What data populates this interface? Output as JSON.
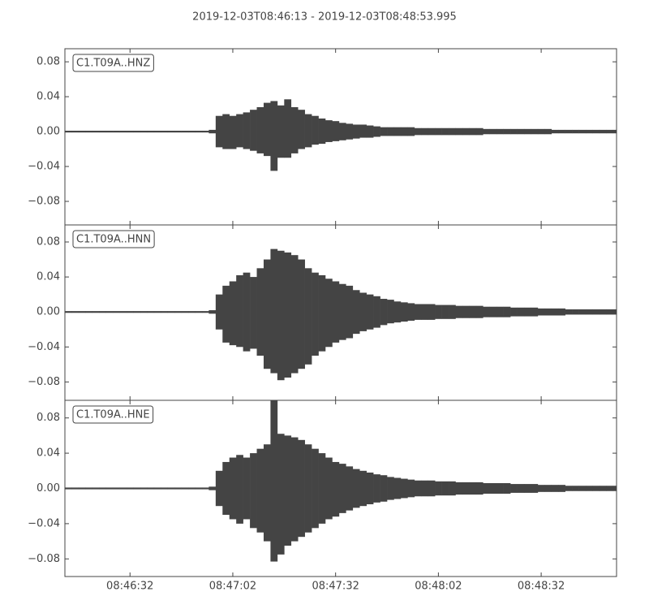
{
  "title": "2019-12-03T08:46:13  -  2019-12-03T08:48:53.995",
  "chart_data": [
    {
      "type": "waveform",
      "label": "C1.T09A..HNZ",
      "color": "#444444",
      "xlim": [
        "2019-12-03T08:46:13",
        "2019-12-03T08:48:53.995"
      ],
      "ylim": [
        -0.107,
        0.095
      ],
      "yticks": [
        {
          "value": -0.08,
          "label": "−0.08"
        },
        {
          "value": -0.04,
          "label": "−0.04"
        },
        {
          "value": 0,
          "label": "0.00"
        },
        0.04,
        0.08
      ],
      "x": [
        "08:46:13",
        "08:46:15",
        "08:46:17",
        "08:46:19",
        "08:46:21",
        "08:46:23",
        "08:46:25",
        "08:46:27",
        "08:46:29",
        "08:46:31",
        "08:46:33",
        "08:46:35",
        "08:46:37",
        "08:46:39",
        "08:46:41",
        "08:46:43",
        "08:46:45",
        "08:46:47",
        "08:46:49",
        "08:46:51",
        "08:46:53",
        "08:46:55",
        "08:46:57",
        "08:46:59",
        "08:47:01",
        "08:47:03",
        "08:47:05",
        "08:47:07",
        "08:47:09",
        "08:47:11",
        "08:47:13",
        "08:47:15",
        "08:47:17",
        "08:47:19",
        "08:47:21",
        "08:47:23",
        "08:47:25",
        "08:47:27",
        "08:47:29",
        "08:47:31",
        "08:47:33",
        "08:47:35",
        "08:47:37",
        "08:47:39",
        "08:47:41",
        "08:47:43",
        "08:47:45",
        "08:47:47",
        "08:47:49",
        "08:47:51",
        "08:47:53",
        "08:47:55",
        "08:47:57",
        "08:47:59",
        "08:48:01",
        "08:48:03",
        "08:48:05",
        "08:48:07",
        "08:48:09",
        "08:48:11",
        "08:48:13",
        "08:48:15",
        "08:48:17",
        "08:48:19",
        "08:48:21",
        "08:48:23",
        "08:48:25",
        "08:48:27",
        "08:48:29",
        "08:48:31",
        "08:48:33",
        "08:48:35",
        "08:48:37",
        "08:48:39",
        "08:48:41",
        "08:48:43",
        "08:48:45",
        "08:48:47",
        "08:48:49",
        "08:48:51",
        "08:48:53"
      ],
      "upper": [
        0.001,
        0.001,
        0.001,
        0.001,
        0.001,
        0.001,
        0.001,
        0.001,
        0.001,
        0.001,
        0.001,
        0.001,
        0.001,
        0.001,
        0.001,
        0.001,
        0.001,
        0.001,
        0.001,
        0.001,
        0.001,
        0.002,
        0.018,
        0.02,
        0.018,
        0.02,
        0.022,
        0.025,
        0.028,
        0.033,
        0.035,
        0.03,
        0.037,
        0.028,
        0.025,
        0.02,
        0.018,
        0.015,
        0.013,
        0.012,
        0.01,
        0.009,
        0.008,
        0.008,
        0.007,
        0.006,
        0.005,
        0.005,
        0.005,
        0.005,
        0.005,
        0.004,
        0.004,
        0.004,
        0.004,
        0.004,
        0.004,
        0.004,
        0.004,
        0.004,
        0.004,
        0.003,
        0.003,
        0.003,
        0.003,
        0.003,
        0.003,
        0.003,
        0.003,
        0.003,
        0.003,
        0.002,
        0.002,
        0.002,
        0.002,
        0.002,
        0.002,
        0.002,
        0.002,
        0.002,
        0.002
      ],
      "lower": [
        -0.001,
        -0.001,
        -0.001,
        -0.001,
        -0.001,
        -0.001,
        -0.001,
        -0.001,
        -0.001,
        -0.001,
        -0.001,
        -0.001,
        -0.001,
        -0.001,
        -0.001,
        -0.001,
        -0.001,
        -0.001,
        -0.001,
        -0.001,
        -0.001,
        -0.002,
        -0.018,
        -0.02,
        -0.02,
        -0.018,
        -0.02,
        -0.022,
        -0.025,
        -0.028,
        -0.045,
        -0.03,
        -0.03,
        -0.025,
        -0.02,
        -0.018,
        -0.015,
        -0.014,
        -0.012,
        -0.011,
        -0.01,
        -0.009,
        -0.008,
        -0.007,
        -0.007,
        -0.006,
        -0.005,
        -0.005,
        -0.005,
        -0.005,
        -0.005,
        -0.004,
        -0.004,
        -0.004,
        -0.004,
        -0.004,
        -0.004,
        -0.004,
        -0.004,
        -0.004,
        -0.004,
        -0.003,
        -0.003,
        -0.003,
        -0.003,
        -0.003,
        -0.003,
        -0.003,
        -0.003,
        -0.003,
        -0.003,
        -0.002,
        -0.002,
        -0.002,
        -0.002,
        -0.002,
        -0.002,
        -0.002,
        -0.002,
        -0.002,
        -0.002
      ]
    },
    {
      "type": "waveform",
      "label": "C1.T09A..HNN",
      "color": "#444444",
      "xlim": [
        "2019-12-03T08:46:13",
        "2019-12-03T08:48:53.995"
      ],
      "ylim": [
        -0.101,
        0.0995
      ],
      "yticks": [
        {
          "value": -0.08,
          "label": "−0.08"
        },
        {
          "value": -0.04,
          "label": "−0.04"
        },
        {
          "value": 0,
          "label": "0.00"
        },
        0.04,
        0.08
      ],
      "x": [
        "08:46:13",
        "08:46:15",
        "08:46:17",
        "08:46:19",
        "08:46:21",
        "08:46:23",
        "08:46:25",
        "08:46:27",
        "08:46:29",
        "08:46:31",
        "08:46:33",
        "08:46:35",
        "08:46:37",
        "08:46:39",
        "08:46:41",
        "08:46:43",
        "08:46:45",
        "08:46:47",
        "08:46:49",
        "08:46:51",
        "08:46:53",
        "08:46:55",
        "08:46:57",
        "08:46:59",
        "08:47:01",
        "08:47:03",
        "08:47:05",
        "08:47:07",
        "08:47:09",
        "08:47:11",
        "08:47:13",
        "08:47:15",
        "08:47:17",
        "08:47:19",
        "08:47:21",
        "08:47:23",
        "08:47:25",
        "08:47:27",
        "08:47:29",
        "08:47:31",
        "08:47:33",
        "08:47:35",
        "08:47:37",
        "08:47:39",
        "08:47:41",
        "08:47:43",
        "08:47:45",
        "08:47:47",
        "08:47:49",
        "08:47:51",
        "08:47:53",
        "08:47:55",
        "08:47:57",
        "08:47:59",
        "08:48:01",
        "08:48:03",
        "08:48:05",
        "08:48:07",
        "08:48:09",
        "08:48:11",
        "08:48:13",
        "08:48:15",
        "08:48:17",
        "08:48:19",
        "08:48:21",
        "08:48:23",
        "08:48:25",
        "08:48:27",
        "08:48:29",
        "08:48:31",
        "08:48:33",
        "08:48:35",
        "08:48:37",
        "08:48:39",
        "08:48:41",
        "08:48:43",
        "08:48:45",
        "08:48:47",
        "08:48:49",
        "08:48:51",
        "08:48:53"
      ],
      "upper": [
        0.001,
        0.001,
        0.001,
        0.001,
        0.001,
        0.001,
        0.001,
        0.001,
        0.001,
        0.001,
        0.001,
        0.001,
        0.001,
        0.001,
        0.001,
        0.001,
        0.001,
        0.001,
        0.001,
        0.001,
        0.001,
        0.002,
        0.02,
        0.03,
        0.035,
        0.042,
        0.045,
        0.04,
        0.05,
        0.06,
        0.072,
        0.07,
        0.068,
        0.065,
        0.06,
        0.05,
        0.045,
        0.042,
        0.038,
        0.035,
        0.032,
        0.03,
        0.025,
        0.022,
        0.02,
        0.018,
        0.015,
        0.014,
        0.012,
        0.011,
        0.01,
        0.009,
        0.009,
        0.009,
        0.008,
        0.008,
        0.008,
        0.007,
        0.007,
        0.007,
        0.007,
        0.006,
        0.006,
        0.006,
        0.006,
        0.005,
        0.005,
        0.005,
        0.005,
        0.004,
        0.004,
        0.004,
        0.004,
        0.003,
        0.003,
        0.003,
        0.003,
        0.003,
        0.003,
        0.003,
        0.003
      ],
      "lower": [
        -0.001,
        -0.001,
        -0.001,
        -0.001,
        -0.001,
        -0.001,
        -0.001,
        -0.001,
        -0.001,
        -0.001,
        -0.001,
        -0.001,
        -0.001,
        -0.001,
        -0.001,
        -0.001,
        -0.001,
        -0.001,
        -0.001,
        -0.001,
        -0.001,
        -0.002,
        -0.02,
        -0.035,
        -0.038,
        -0.04,
        -0.045,
        -0.042,
        -0.05,
        -0.065,
        -0.07,
        -0.078,
        -0.075,
        -0.07,
        -0.065,
        -0.06,
        -0.05,
        -0.045,
        -0.04,
        -0.035,
        -0.032,
        -0.03,
        -0.025,
        -0.022,
        -0.02,
        -0.018,
        -0.015,
        -0.013,
        -0.012,
        -0.011,
        -0.01,
        -0.009,
        -0.009,
        -0.009,
        -0.008,
        -0.008,
        -0.008,
        -0.007,
        -0.007,
        -0.007,
        -0.007,
        -0.006,
        -0.006,
        -0.006,
        -0.006,
        -0.005,
        -0.005,
        -0.005,
        -0.005,
        -0.004,
        -0.004,
        -0.004,
        -0.004,
        -0.003,
        -0.003,
        -0.003,
        -0.003,
        -0.003,
        -0.003,
        -0.003,
        -0.003
      ]
    },
    {
      "type": "waveform",
      "label": "C1.T09A..HNE",
      "color": "#444444",
      "xlim": [
        "2019-12-03T08:46:13",
        "2019-12-03T08:48:53.995"
      ],
      "ylim": [
        -0.1,
        0.1
      ],
      "yticks": [
        {
          "value": -0.08,
          "label": "−0.08"
        },
        {
          "value": -0.04,
          "label": "−0.04"
        },
        {
          "value": 0,
          "label": "0.00"
        },
        0.04,
        0.08
      ],
      "xticks": [
        "08:46:32",
        "08:47:02",
        "08:47:32",
        "08:48:02",
        "08:48:32"
      ],
      "x": [
        "08:46:13",
        "08:46:15",
        "08:46:17",
        "08:46:19",
        "08:46:21",
        "08:46:23",
        "08:46:25",
        "08:46:27",
        "08:46:29",
        "08:46:31",
        "08:46:33",
        "08:46:35",
        "08:46:37",
        "08:46:39",
        "08:46:41",
        "08:46:43",
        "08:46:45",
        "08:46:47",
        "08:46:49",
        "08:46:51",
        "08:46:53",
        "08:46:55",
        "08:46:57",
        "08:46:59",
        "08:47:01",
        "08:47:03",
        "08:47:05",
        "08:47:07",
        "08:47:09",
        "08:47:11",
        "08:47:13",
        "08:47:15",
        "08:47:17",
        "08:47:19",
        "08:47:21",
        "08:47:23",
        "08:47:25",
        "08:47:27",
        "08:47:29",
        "08:47:31",
        "08:47:33",
        "08:47:35",
        "08:47:37",
        "08:47:39",
        "08:47:41",
        "08:47:43",
        "08:47:45",
        "08:47:47",
        "08:47:49",
        "08:47:51",
        "08:47:53",
        "08:47:55",
        "08:47:57",
        "08:47:59",
        "08:48:01",
        "08:48:03",
        "08:48:05",
        "08:48:07",
        "08:48:09",
        "08:48:11",
        "08:48:13",
        "08:48:15",
        "08:48:17",
        "08:48:19",
        "08:48:21",
        "08:48:23",
        "08:48:25",
        "08:48:27",
        "08:48:29",
        "08:48:31",
        "08:48:33",
        "08:48:35",
        "08:48:37",
        "08:48:39",
        "08:48:41",
        "08:48:43",
        "08:48:45",
        "08:48:47",
        "08:48:49",
        "08:48:51",
        "08:48:53"
      ],
      "upper": [
        0.001,
        0.001,
        0.001,
        0.001,
        0.001,
        0.001,
        0.001,
        0.001,
        0.001,
        0.001,
        0.001,
        0.001,
        0.001,
        0.001,
        0.001,
        0.001,
        0.001,
        0.001,
        0.001,
        0.001,
        0.001,
        0.002,
        0.02,
        0.03,
        0.035,
        0.038,
        0.035,
        0.04,
        0.045,
        0.05,
        0.1,
        0.062,
        0.06,
        0.058,
        0.055,
        0.05,
        0.045,
        0.04,
        0.035,
        0.03,
        0.028,
        0.025,
        0.022,
        0.02,
        0.018,
        0.016,
        0.015,
        0.013,
        0.012,
        0.011,
        0.01,
        0.009,
        0.009,
        0.009,
        0.008,
        0.008,
        0.008,
        0.007,
        0.007,
        0.007,
        0.007,
        0.006,
        0.006,
        0.006,
        0.006,
        0.005,
        0.005,
        0.005,
        0.005,
        0.004,
        0.004,
        0.004,
        0.004,
        0.003,
        0.003,
        0.003,
        0.003,
        0.003,
        0.003,
        0.003,
        0.003
      ],
      "lower": [
        -0.001,
        -0.001,
        -0.001,
        -0.001,
        -0.001,
        -0.001,
        -0.001,
        -0.001,
        -0.001,
        -0.001,
        -0.001,
        -0.001,
        -0.001,
        -0.001,
        -0.001,
        -0.001,
        -0.001,
        -0.001,
        -0.001,
        -0.001,
        -0.001,
        -0.002,
        -0.02,
        -0.03,
        -0.035,
        -0.04,
        -0.035,
        -0.045,
        -0.05,
        -0.06,
        -0.083,
        -0.075,
        -0.065,
        -0.06,
        -0.055,
        -0.05,
        -0.045,
        -0.04,
        -0.035,
        -0.032,
        -0.028,
        -0.025,
        -0.022,
        -0.02,
        -0.018,
        -0.016,
        -0.015,
        -0.013,
        -0.012,
        -0.011,
        -0.01,
        -0.009,
        -0.009,
        -0.009,
        -0.008,
        -0.008,
        -0.008,
        -0.007,
        -0.007,
        -0.007,
        -0.007,
        -0.006,
        -0.006,
        -0.006,
        -0.006,
        -0.005,
        -0.005,
        -0.005,
        -0.005,
        -0.004,
        -0.004,
        -0.004,
        -0.004,
        -0.003,
        -0.003,
        -0.003,
        -0.003,
        -0.003,
        -0.003,
        -0.003,
        -0.003
      ]
    }
  ]
}
